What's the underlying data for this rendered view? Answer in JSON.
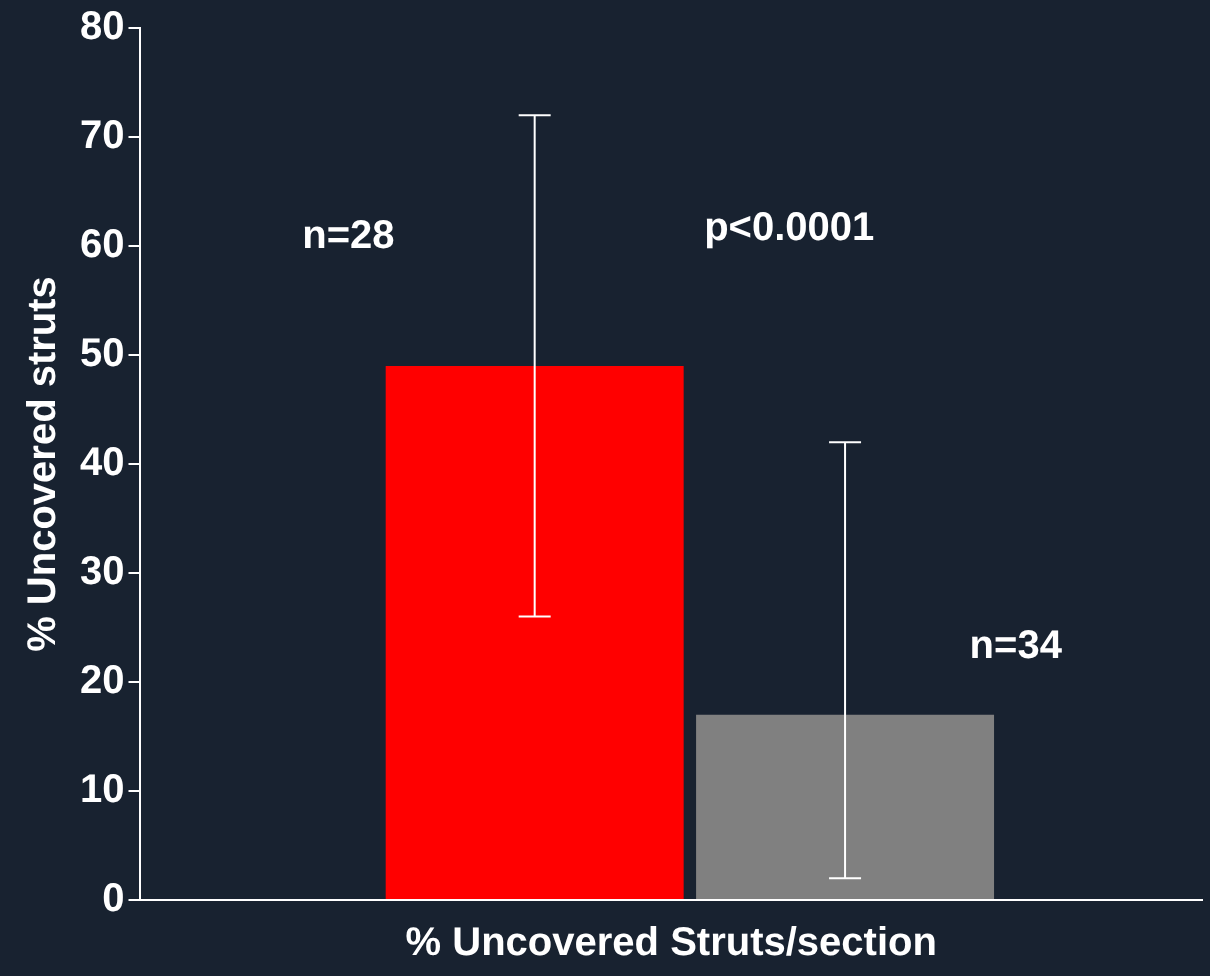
{
  "chart_data": {
    "type": "bar",
    "xlabel": "% Uncovered Struts/section",
    "ylabel": "% Uncovered struts",
    "categories": [
      null,
      null
    ],
    "values": [
      49,
      17
    ],
    "colors": [
      "#ff0000",
      "#808080"
    ],
    "errors": [
      [
        26,
        72
      ],
      [
        2,
        42
      ]
    ],
    "ylim": [
      0,
      80
    ],
    "yticks": [
      0,
      10,
      20,
      30,
      40,
      50,
      60,
      70,
      80
    ],
    "grid": false,
    "legend": false,
    "annotations": [
      "n=28",
      "p<0.0001",
      "n=34"
    ]
  }
}
